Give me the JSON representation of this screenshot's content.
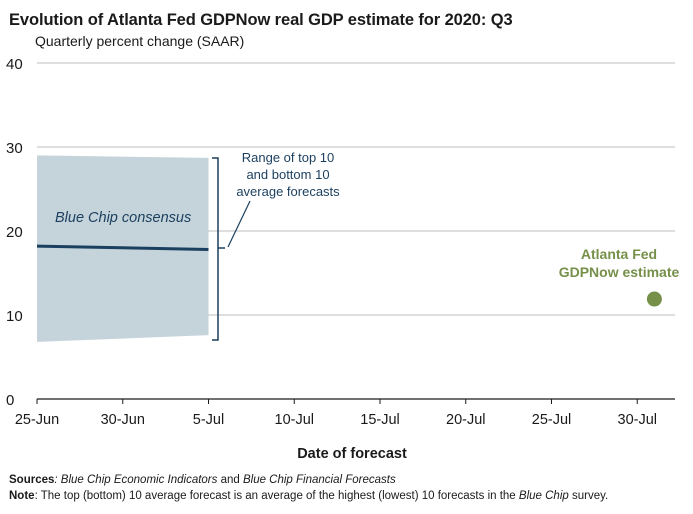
{
  "header": {
    "title": "Evolution of Atlanta Fed GDPNow real GDP estimate for 2020: Q3",
    "subtitle": "Quarterly percent change (SAAR)"
  },
  "chart_data": {
    "type": "line",
    "title": "Evolution of Atlanta Fed GDPNow real GDP estimate for 2020: Q3",
    "subtitle": "Quarterly percent change (SAAR)",
    "xlabel": "Date of forecast",
    "ylabel": "Quarterly percent change (SAAR)",
    "x_tick_labels": [
      "25-Jun",
      "30-Jun",
      "5-Jul",
      "10-Jul",
      "15-Jul",
      "20-Jul",
      "25-Jul",
      "30-Jul"
    ],
    "x_tick_days": [
      0,
      5,
      10,
      15,
      20,
      25,
      30,
      35
    ],
    "xlim_days": [
      0,
      38
    ],
    "y_ticks": [
      0,
      10,
      20,
      30,
      40
    ],
    "ylim": [
      0,
      40
    ],
    "grid": true,
    "range_band": {
      "name": "Range of top 10 and bottom 10 average forecasts",
      "x_days": [
        0,
        10
      ],
      "upper": [
        29.0,
        28.7
      ],
      "lower": [
        6.8,
        7.6
      ]
    },
    "series": [
      {
        "name": "Blue Chip consensus",
        "type": "line",
        "x_days": [
          0,
          10
        ],
        "values": [
          18.2,
          17.8
        ],
        "color": "#1b3f5f"
      },
      {
        "name": "Atlanta Fed GDPNow estimate",
        "type": "scatter",
        "x_days": [
          36
        ],
        "values": [
          11.9
        ],
        "color": "#76904a"
      }
    ],
    "annotations": {
      "blue_chip_label": "Blue Chip consensus",
      "range_label_lines": [
        "Range of top 10",
        "and bottom 10",
        "average forecasts"
      ],
      "gdpnow_label_lines": [
        "Atlanta Fed",
        "GDPNow estimate"
      ]
    }
  },
  "footer": {
    "sources_label": "Sources",
    "sources_part1": "Blue Chip Economic Indicators",
    "sources_and": " and ",
    "sources_part2": "Blue Chip Financial Forecasts",
    "note_label": "Note",
    "note_text_before": ": The top (bottom) 10 average forecast is an average of the highest (lowest) 10 forecasts in the ",
    "note_text_italic": "Blue Chip",
    "note_text_after": " survey."
  },
  "colors": {
    "band": "#c5d3da",
    "blue_chip_line": "#1b3f5f",
    "gdpnow": "#76904a",
    "grid": "#a6a6a6",
    "axis": "#1a1a1a"
  }
}
